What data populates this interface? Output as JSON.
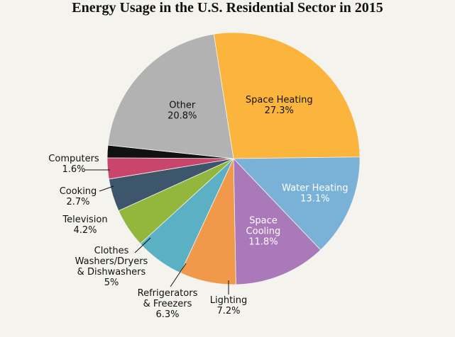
{
  "chart_data": {
    "type": "pie",
    "title": "Energy Usage in the U.S. Residential Sector in 2015",
    "slices": [
      {
        "label": "Space Heating",
        "value": 27.3,
        "display": "27.3%",
        "color": "#fbb53c",
        "label_color": "#111111"
      },
      {
        "label": "Water Heating",
        "value": 13.1,
        "display": "13.1%",
        "color": "#79b2d6",
        "label_color": "#ffffff"
      },
      {
        "label": "Space Cooling",
        "value": 11.8,
        "display": "11.8%",
        "color": "#aa79b9",
        "label_color": "#ffffff"
      },
      {
        "label": "Lighting",
        "value": 7.2,
        "display": "7.2%",
        "color": "#f1994b",
        "label_color": "#111111"
      },
      {
        "label": "Refrigerators & Freezers",
        "value": 6.3,
        "display": "6.3%",
        "color": "#5bb0c4",
        "label_color": "#111111"
      },
      {
        "label": "Clothes Washers/Dryers & Dishwashers",
        "value": 5,
        "display": "5%",
        "color": "#93b63c",
        "label_color": "#111111"
      },
      {
        "label": "Television",
        "value": 4.2,
        "display": "4.2%",
        "color": "#3e566b",
        "label_color": "#111111"
      },
      {
        "label": "Cooking",
        "value": 2.7,
        "display": "2.7%",
        "color": "#c9456b",
        "label_color": "#111111"
      },
      {
        "label": "Computers",
        "value": 1.6,
        "display": "1.6%",
        "color": "#111111",
        "label_color": "#111111"
      },
      {
        "label": "Other",
        "value": 20.8,
        "display": "20.8%",
        "color": "#b2b2b2",
        "label_color": "#111111"
      }
    ]
  }
}
